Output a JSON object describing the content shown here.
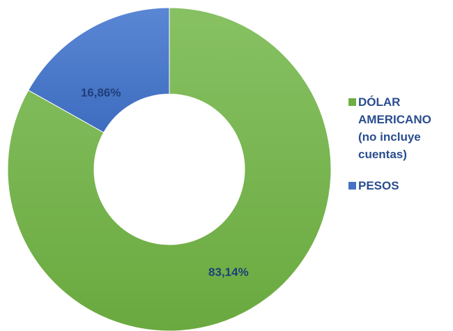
{
  "chart_data": {
    "type": "pie",
    "categories": [
      "DÓLAR AMERICANO (no incluye cuentas)",
      "PESOS"
    ],
    "values": [
      83.14,
      16.86
    ],
    "value_labels": [
      "83,14%",
      "16,86%"
    ],
    "colors": [
      "#70ad47",
      "#4472c4"
    ],
    "donut": true
  }
}
